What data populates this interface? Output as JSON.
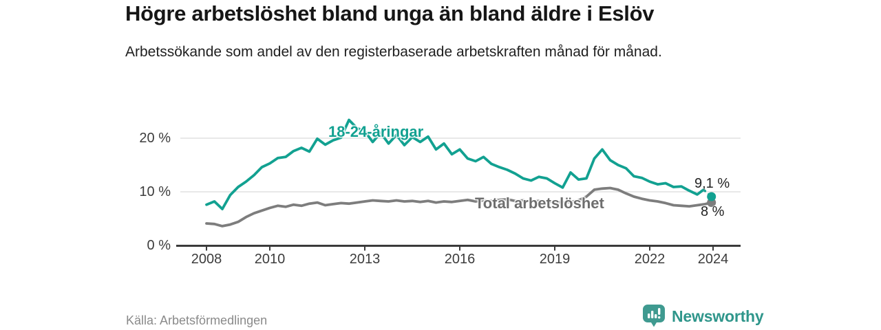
{
  "colors": {
    "young_line": "#12a191",
    "total_line": "#7d7d7d",
    "axis": "#3a3a3a",
    "grid": "#d9d9d9",
    "brand": "#2f968b"
  },
  "footer": {
    "source": "Källa: Arbetsförmedlingen",
    "brand": "Newsworthy"
  },
  "chart_data": {
    "type": "line",
    "title": "Högre arbetslöshet bland unga än bland äldre i Eslöv",
    "subtitle": "Arbetssökande som andel av den registerbaserade arbetskraften månad för månad.",
    "unit": "%",
    "x_ticks": [
      2008,
      2010,
      2013,
      2016,
      2019,
      2022,
      2024
    ],
    "y_ticks": [
      {
        "value": 0,
        "label": "0 %"
      },
      {
        "value": 10,
        "label": "10 %"
      },
      {
        "value": 20,
        "label": "20 %"
      }
    ],
    "axis": {
      "x_min": 2007.0,
      "x_max": 2024.9,
      "y_min": 0,
      "y_max": 23.5,
      "grid": true
    },
    "series": [
      {
        "name": "Total arbetslöshet",
        "color": "#7d7d7d",
        "end_label": "8 %",
        "end_value": 8.0,
        "dashed_from": null,
        "points": [
          [
            2008.0,
            4.1
          ],
          [
            2008.25,
            4.0
          ],
          [
            2008.5,
            3.6
          ],
          [
            2008.75,
            3.9
          ],
          [
            2009.0,
            4.4
          ],
          [
            2009.25,
            5.3
          ],
          [
            2009.5,
            6.0
          ],
          [
            2009.75,
            6.5
          ],
          [
            2010.0,
            7.0
          ],
          [
            2010.25,
            7.4
          ],
          [
            2010.5,
            7.2
          ],
          [
            2010.75,
            7.6
          ],
          [
            2011.0,
            7.4
          ],
          [
            2011.25,
            7.8
          ],
          [
            2011.5,
            8.0
          ],
          [
            2011.75,
            7.5
          ],
          [
            2012.0,
            7.7
          ],
          [
            2012.25,
            7.9
          ],
          [
            2012.5,
            7.8
          ],
          [
            2012.75,
            8.0
          ],
          [
            2013.0,
            8.2
          ],
          [
            2013.25,
            8.4
          ],
          [
            2013.5,
            8.3
          ],
          [
            2013.75,
            8.2
          ],
          [
            2014.0,
            8.4
          ],
          [
            2014.25,
            8.2
          ],
          [
            2014.5,
            8.3
          ],
          [
            2014.75,
            8.1
          ],
          [
            2015.0,
            8.3
          ],
          [
            2015.25,
            8.0
          ],
          [
            2015.5,
            8.2
          ],
          [
            2015.75,
            8.1
          ],
          [
            2016.0,
            8.3
          ],
          [
            2016.25,
            8.5
          ],
          [
            2016.5,
            8.2
          ],
          [
            2016.75,
            8.4
          ],
          [
            2017.0,
            8.3
          ],
          [
            2017.25,
            8.5
          ],
          [
            2017.5,
            8.6
          ],
          [
            2017.75,
            8.3
          ],
          [
            2018.0,
            8.4
          ],
          [
            2018.25,
            8.2
          ],
          [
            2018.5,
            8.3
          ],
          [
            2018.75,
            8.1
          ],
          [
            2019.0,
            8.2
          ],
          [
            2019.25,
            8.0
          ],
          [
            2019.5,
            8.1
          ],
          [
            2019.75,
            8.4
          ],
          [
            2020.0,
            9.1
          ],
          [
            2020.25,
            10.4
          ],
          [
            2020.5,
            10.6
          ],
          [
            2020.75,
            10.7
          ],
          [
            2021.0,
            10.4
          ],
          [
            2021.25,
            9.7
          ],
          [
            2021.5,
            9.1
          ],
          [
            2021.75,
            8.7
          ],
          [
            2022.0,
            8.4
          ],
          [
            2022.25,
            8.2
          ],
          [
            2022.5,
            7.9
          ],
          [
            2022.75,
            7.5
          ],
          [
            2023.0,
            7.4
          ],
          [
            2023.25,
            7.3
          ],
          [
            2023.5,
            7.5
          ],
          [
            2023.75,
            7.7
          ],
          [
            2023.95,
            8.0
          ]
        ]
      },
      {
        "name": "18-24-åringar",
        "color": "#12a191",
        "end_label": "9,1 %",
        "end_value": 9.1,
        "dashed_from": 2023.7,
        "points": [
          [
            2008.0,
            7.6
          ],
          [
            2008.25,
            8.2
          ],
          [
            2008.5,
            6.8
          ],
          [
            2008.75,
            9.4
          ],
          [
            2009.0,
            10.9
          ],
          [
            2009.25,
            11.9
          ],
          [
            2009.5,
            13.1
          ],
          [
            2009.75,
            14.6
          ],
          [
            2010.0,
            15.3
          ],
          [
            2010.25,
            16.3
          ],
          [
            2010.5,
            16.5
          ],
          [
            2010.75,
            17.6
          ],
          [
            2011.0,
            18.2
          ],
          [
            2011.25,
            17.5
          ],
          [
            2011.5,
            19.9
          ],
          [
            2011.75,
            18.8
          ],
          [
            2012.0,
            19.6
          ],
          [
            2012.25,
            20.1
          ],
          [
            2012.5,
            23.4
          ],
          [
            2012.75,
            21.9
          ],
          [
            2013.0,
            21.3
          ],
          [
            2013.25,
            19.3
          ],
          [
            2013.5,
            21.0
          ],
          [
            2013.75,
            19.0
          ],
          [
            2014.0,
            20.6
          ],
          [
            2014.25,
            18.7
          ],
          [
            2014.5,
            20.2
          ],
          [
            2014.75,
            19.3
          ],
          [
            2015.0,
            20.3
          ],
          [
            2015.25,
            17.9
          ],
          [
            2015.5,
            19.0
          ],
          [
            2015.75,
            17.0
          ],
          [
            2016.0,
            17.9
          ],
          [
            2016.25,
            16.2
          ],
          [
            2016.5,
            15.7
          ],
          [
            2016.75,
            16.5
          ],
          [
            2017.0,
            15.2
          ],
          [
            2017.25,
            14.6
          ],
          [
            2017.5,
            14.1
          ],
          [
            2017.75,
            13.4
          ],
          [
            2018.0,
            12.5
          ],
          [
            2018.25,
            12.1
          ],
          [
            2018.5,
            12.8
          ],
          [
            2018.75,
            12.5
          ],
          [
            2019.0,
            11.6
          ],
          [
            2019.25,
            10.8
          ],
          [
            2019.5,
            13.6
          ],
          [
            2019.75,
            12.3
          ],
          [
            2020.0,
            12.5
          ],
          [
            2020.25,
            16.2
          ],
          [
            2020.5,
            17.9
          ],
          [
            2020.75,
            15.9
          ],
          [
            2021.0,
            15.0
          ],
          [
            2021.25,
            14.4
          ],
          [
            2021.5,
            12.9
          ],
          [
            2021.75,
            12.6
          ],
          [
            2022.0,
            11.9
          ],
          [
            2022.25,
            11.4
          ],
          [
            2022.5,
            11.6
          ],
          [
            2022.75,
            10.9
          ],
          [
            2023.0,
            11.0
          ],
          [
            2023.25,
            10.2
          ],
          [
            2023.5,
            9.5
          ],
          [
            2023.7,
            10.4
          ],
          [
            2023.95,
            9.1
          ]
        ]
      }
    ]
  }
}
